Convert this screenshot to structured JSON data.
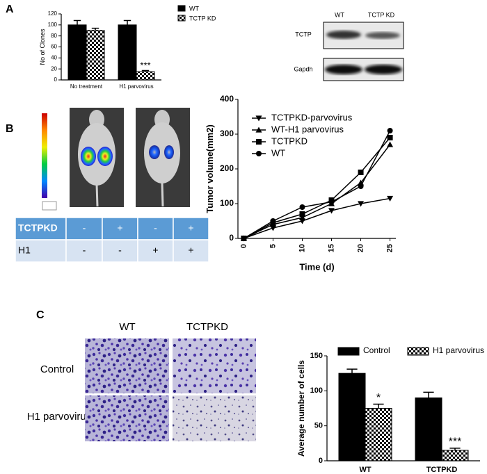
{
  "panels": {
    "a": "A",
    "b": "B",
    "c": "C"
  },
  "blot": {
    "columns": [
      "WT",
      "TCTP KD"
    ],
    "rows": [
      "TCTP",
      "Gapdh"
    ]
  },
  "table": {
    "rows": [
      [
        "TCTPKD",
        "-",
        "+",
        "-",
        "+"
      ],
      [
        "H1",
        "-",
        "-",
        "+",
        "+"
      ]
    ]
  },
  "images": {
    "columns": [
      "WT",
      "TCTPKD"
    ],
    "rows": [
      "Control",
      "H1 parvovirus"
    ]
  },
  "chart_data": [
    {
      "type": "bar",
      "ylabel": "No of Clones",
      "categories": [
        "No treatment",
        "H1 parvovirus"
      ],
      "series": [
        {
          "name": "WT",
          "color": "#000000",
          "values": [
            100,
            100
          ],
          "errors": [
            8,
            8
          ]
        },
        {
          "name": "TCTP KD",
          "color": "#000000",
          "pattern": "checker",
          "values": [
            90,
            15
          ],
          "errors": [
            4,
            2
          ],
          "significance": [
            null,
            "***"
          ]
        }
      ],
      "ylim": [
        0,
        120
      ],
      "yticks": [
        0,
        20,
        40,
        60,
        80,
        100,
        120
      ],
      "legend": "right"
    },
    {
      "type": "line",
      "xlabel": "Time (d)",
      "ylabel": "Tumor volume(mm2)",
      "x": [
        0,
        5,
        10,
        15,
        20,
        25
      ],
      "series": [
        {
          "name": "TCTPKD-parvovirus",
          "color": "#000000",
          "marker": "triangle-down",
          "values": [
            0,
            30,
            50,
            80,
            100,
            115
          ]
        },
        {
          "name": "WT-H1 parvovirus",
          "color": "#000000",
          "marker": "triangle-up",
          "values": [
            0,
            40,
            60,
            100,
            160,
            270
          ]
        },
        {
          "name": "TCTPKD",
          "color": "#000000",
          "marker": "square",
          "values": [
            0,
            45,
            70,
            110,
            190,
            290
          ]
        },
        {
          "name": "WT",
          "color": "#000000",
          "marker": "circle",
          "values": [
            0,
            50,
            90,
            105,
            150,
            310
          ]
        }
      ],
      "xlim": [
        -1,
        26
      ],
      "xticks": [
        0,
        5,
        10,
        15,
        20,
        25
      ],
      "ylim": [
        0,
        400
      ],
      "yticks": [
        0,
        100,
        200,
        300,
        400
      ],
      "legend": "upper left"
    },
    {
      "type": "bar",
      "ylabel": "Average number of cells",
      "categories": [
        "WT",
        "TCTPKD"
      ],
      "series": [
        {
          "name": "Control",
          "color": "#000000",
          "values": [
            125,
            90
          ],
          "errors": [
            6,
            8
          ]
        },
        {
          "name": "H1 parvovirus",
          "color": "#000000",
          "pattern": "checker",
          "values": [
            75,
            15
          ],
          "errors": [
            6,
            3
          ],
          "significance": [
            "*",
            "***"
          ]
        }
      ],
      "ylim": [
        0,
        150
      ],
      "yticks": [
        0,
        50,
        100,
        150
      ],
      "legend": "top"
    }
  ]
}
